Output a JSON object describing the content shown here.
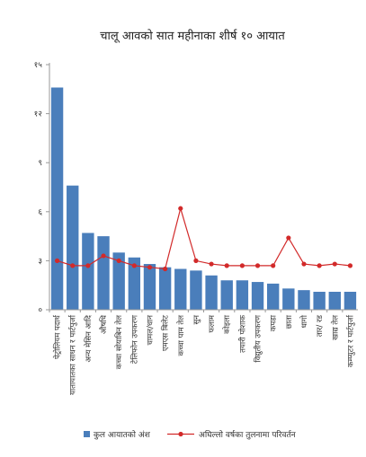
{
  "chart_data": {
    "type": "bar",
    "title": "चालू आवको सात महीनाका शीर्ष १० आयात",
    "ylim": [
      0,
      15
    ],
    "yticks": [
      0,
      3,
      6,
      9,
      12,
      15
    ],
    "ytick_labels": [
      "०",
      "३",
      "६",
      "९",
      "१२",
      "१५"
    ],
    "legend_placement": "bottom",
    "categories": [
      "पेट्रोलियम पदार्थ",
      "यातायातका साधन र पार्टपुर्जा",
      "अन्य मेसिन आदि",
      "औषधि",
      "कच्चा सोयाबिन तेल",
      "टेलिफोन उपकरण",
      "चामल/धान",
      "एमएस बिलेट",
      "कच्चा पाम तेल",
      "सुन",
      "फलाम",
      "कोइला",
      "तयारी पोशाक",
      "विद्युतीय उपकरण",
      "कपडा",
      "छाता",
      "धागो",
      "तार/ रड",
      "खाद्य तेल",
      "कम्प्युटर र पार्टपुर्जा"
    ],
    "series": [
      {
        "name": "कुल आयातको अंश",
        "type": "bar",
        "color": "#4a7ebb",
        "values": [
          13.6,
          7.6,
          4.7,
          4.5,
          3.5,
          3.2,
          2.8,
          2.6,
          2.5,
          2.4,
          2.1,
          1.8,
          1.8,
          1.7,
          1.6,
          1.3,
          1.2,
          1.1,
          1.1,
          1.1
        ]
      },
      {
        "name": "अघिल्लो वर्षका तुलनामा परिवर्तन",
        "type": "line",
        "color": "#d22a2a",
        "values": [
          3.0,
          2.7,
          2.7,
          3.3,
          3.0,
          2.7,
          2.6,
          2.5,
          6.2,
          3.0,
          2.8,
          2.7,
          2.7,
          2.7,
          2.7,
          4.4,
          2.8,
          2.7,
          2.8,
          2.7
        ]
      }
    ]
  }
}
